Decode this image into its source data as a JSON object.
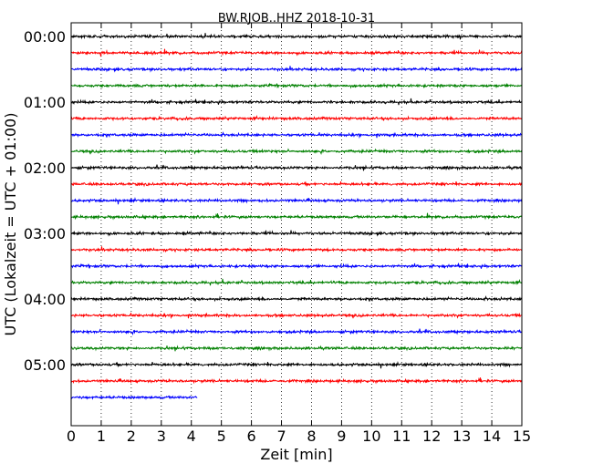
{
  "chart_data": {
    "type": "line",
    "title": "BW.RJOB..HHZ 2018-10-31",
    "xlabel": "Zeit  [min]",
    "ylabel": "UTC (Lokalzeit = UTC + 01:00)",
    "xlim": [
      0,
      15
    ],
    "x_ticks": [
      "0",
      "1",
      "2",
      "3",
      "4",
      "5",
      "6",
      "7",
      "8",
      "9",
      "10",
      "11",
      "12",
      "13",
      "14",
      "15"
    ],
    "y_tick_labels": [
      "00:00",
      "01:00",
      "02:00",
      "03:00",
      "04:00",
      "05:00"
    ],
    "grid": "vertical dotted at each minute",
    "trace_colors": [
      "#000000",
      "#ff0000",
      "#0000ff",
      "#008000"
    ],
    "traces": [
      {
        "start": "00:00",
        "end_min": 15
      },
      {
        "start": "00:15",
        "end_min": 15
      },
      {
        "start": "00:30",
        "end_min": 15
      },
      {
        "start": "00:45",
        "end_min": 15
      },
      {
        "start": "01:00",
        "end_min": 15
      },
      {
        "start": "01:15",
        "end_min": 15
      },
      {
        "start": "01:30",
        "end_min": 15
      },
      {
        "start": "01:45",
        "end_min": 15
      },
      {
        "start": "02:00",
        "end_min": 15
      },
      {
        "start": "02:15",
        "end_min": 15
      },
      {
        "start": "02:30",
        "end_min": 15
      },
      {
        "start": "02:45",
        "end_min": 15
      },
      {
        "start": "03:00",
        "end_min": 15
      },
      {
        "start": "03:15",
        "end_min": 15
      },
      {
        "start": "03:30",
        "end_min": 15
      },
      {
        "start": "03:45",
        "end_min": 15
      },
      {
        "start": "04:00",
        "end_min": 15
      },
      {
        "start": "04:15",
        "end_min": 15
      },
      {
        "start": "04:30",
        "end_min": 15
      },
      {
        "start": "04:45",
        "end_min": 15
      },
      {
        "start": "05:00",
        "end_min": 15
      },
      {
        "start": "05:15",
        "end_min": 15
      },
      {
        "start": "05:30",
        "end_min": 4.2
      }
    ]
  }
}
